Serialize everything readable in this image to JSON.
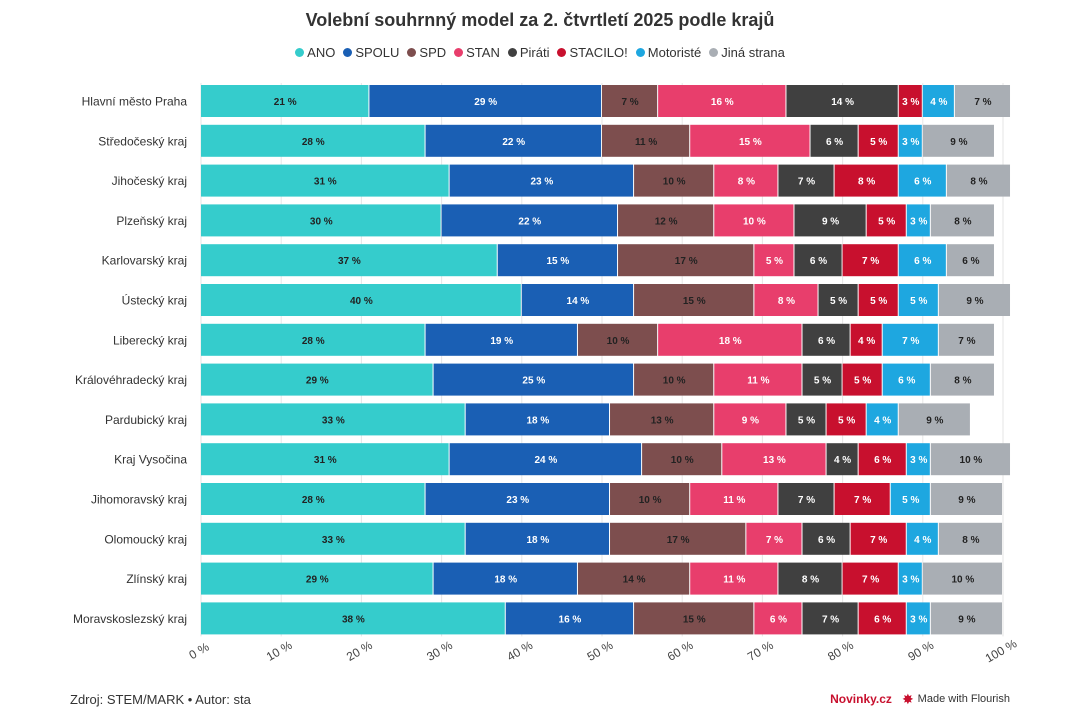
{
  "chart_data": {
    "type": "bar",
    "orientation": "horizontal",
    "stacked": true,
    "title": "Volební souhrnný model za 2. čtvrtletí 2025 podle krajů",
    "legend_position": "top",
    "xlim": [
      0,
      100
    ],
    "x_ticks": [
      "0 %",
      "10 %",
      "20 %",
      "30 %",
      "40 %",
      "50 %",
      "60 %",
      "70 %",
      "80 %",
      "90 %",
      "100 %"
    ],
    "grid": true,
    "categories": [
      "Hlavní město Praha",
      "Středočeský kraj",
      "Jihočeský kraj",
      "Plzeňský kraj",
      "Karlovarský kraj",
      "Ústecký kraj",
      "Liberecký kraj",
      "Královéhradecký kraj",
      "Pardubický kraj",
      "Kraj Vysočina",
      "Jihomoravský kraj",
      "Olomoucký kraj",
      "Zlínský kraj",
      "Moravskoslezský kraj"
    ],
    "series": [
      {
        "name": "ANO",
        "color": "#35cccc",
        "values": [
          21,
          28,
          31,
          30,
          37,
          40,
          28,
          29,
          33,
          31,
          28,
          33,
          29,
          38
        ]
      },
      {
        "name": "SPOLU",
        "color": "#1a5fb4",
        "values": [
          29,
          22,
          23,
          22,
          15,
          14,
          19,
          25,
          18,
          24,
          23,
          18,
          18,
          16
        ]
      },
      {
        "name": "SPD",
        "color": "#7d4e4e",
        "values": [
          7,
          11,
          10,
          12,
          17,
          15,
          10,
          10,
          13,
          10,
          10,
          17,
          14,
          15
        ]
      },
      {
        "name": "STAN",
        "color": "#e83e6c",
        "values": [
          16,
          15,
          8,
          10,
          5,
          8,
          18,
          11,
          9,
          13,
          11,
          7,
          11,
          6
        ]
      },
      {
        "name": "Piráti",
        "color": "#404040",
        "values": [
          14,
          6,
          7,
          9,
          6,
          5,
          6,
          5,
          5,
          4,
          7,
          6,
          8,
          7
        ]
      },
      {
        "name": "STACILO!",
        "color": "#c8102e",
        "values": [
          3,
          5,
          8,
          5,
          7,
          5,
          4,
          5,
          5,
          6,
          7,
          7,
          7,
          6
        ]
      },
      {
        "name": "Motoristé",
        "color": "#1ea7e0",
        "values": [
          4,
          3,
          6,
          3,
          6,
          5,
          7,
          6,
          4,
          3,
          5,
          4,
          3,
          3
        ]
      },
      {
        "name": "Jiná strana",
        "color": "#a9aeb4",
        "values": [
          7,
          9,
          8,
          8,
          6,
          9,
          7,
          8,
          9,
          10,
          9,
          8,
          10,
          9
        ]
      }
    ]
  },
  "footer": {
    "source": "Zdroj: STEM/MARK • Autor: sta",
    "brand": "Novinky.cz",
    "flourish": "Made with Flourish",
    "star_icon": "✸"
  }
}
